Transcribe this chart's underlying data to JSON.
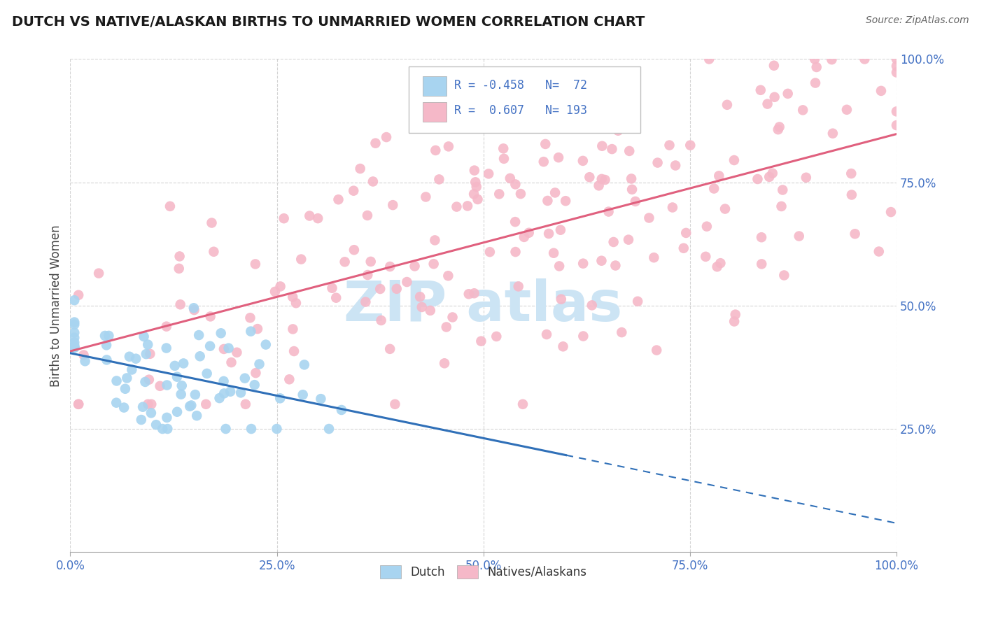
{
  "title": "DUTCH VS NATIVE/ALASKAN BIRTHS TO UNMARRIED WOMEN CORRELATION CHART",
  "source": "Source: ZipAtlas.com",
  "ylabel": "Births to Unmarried Women",
  "xlim": [
    0.0,
    1.0
  ],
  "ylim": [
    0.0,
    1.0
  ],
  "xtick_positions": [
    0.0,
    0.25,
    0.5,
    0.75,
    1.0
  ],
  "xtick_labels": [
    "0.0%",
    "25.0%",
    "50.0%",
    "75.0%",
    "100.0%"
  ],
  "ytick_positions": [
    0.25,
    0.5,
    0.75,
    1.0
  ],
  "ytick_labels": [
    "25.0%",
    "50.0%",
    "75.0%",
    "100.0%"
  ],
  "legend_labels": [
    "Dutch",
    "Natives/Alaskans"
  ],
  "dutch_R": "-0.458",
  "dutch_N": 72,
  "native_R": "0.607",
  "native_N": 193,
  "dutch_color": "#a8d4f0",
  "native_color": "#f5b8c8",
  "dutch_line_color": "#3070b8",
  "native_line_color": "#e0607e",
  "background_color": "#ffffff",
  "grid_color": "#d0d0d0",
  "watermark_color": "#cce4f4",
  "tick_color": "#4472c4",
  "legend_text_color": "#4472c4"
}
